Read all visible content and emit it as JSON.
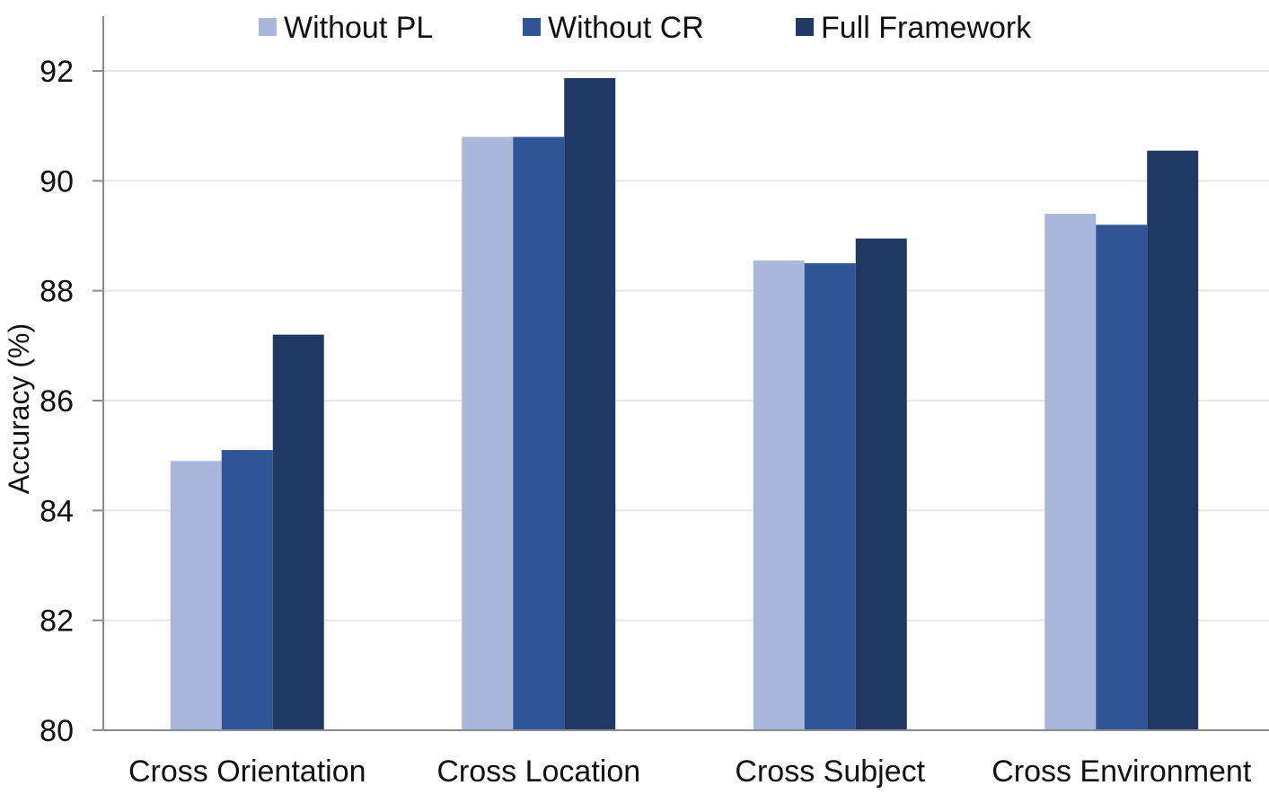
{
  "chart_data": {
    "type": "bar",
    "title": "",
    "xlabel": "",
    "ylabel": "Accuracy (%)",
    "ylim": [
      80,
      92.5
    ],
    "yticks": [
      80,
      82,
      84,
      86,
      88,
      90,
      92
    ],
    "grid": true,
    "legend_position": "top",
    "categories": [
      "Cross Orientation",
      "Cross Location",
      "Cross Subject",
      "Cross Environment"
    ],
    "series": [
      {
        "name": "Without PL",
        "color": "#a9b7db",
        "values": [
          84.9,
          90.8,
          88.55,
          89.4
        ]
      },
      {
        "name": "Without CR",
        "color": "#2f5597",
        "values": [
          85.1,
          90.8,
          88.5,
          89.2
        ]
      },
      {
        "name": "Full Framework",
        "color": "#203864",
        "values": [
          87.2,
          91.87,
          88.95,
          90.55
        ]
      }
    ]
  }
}
